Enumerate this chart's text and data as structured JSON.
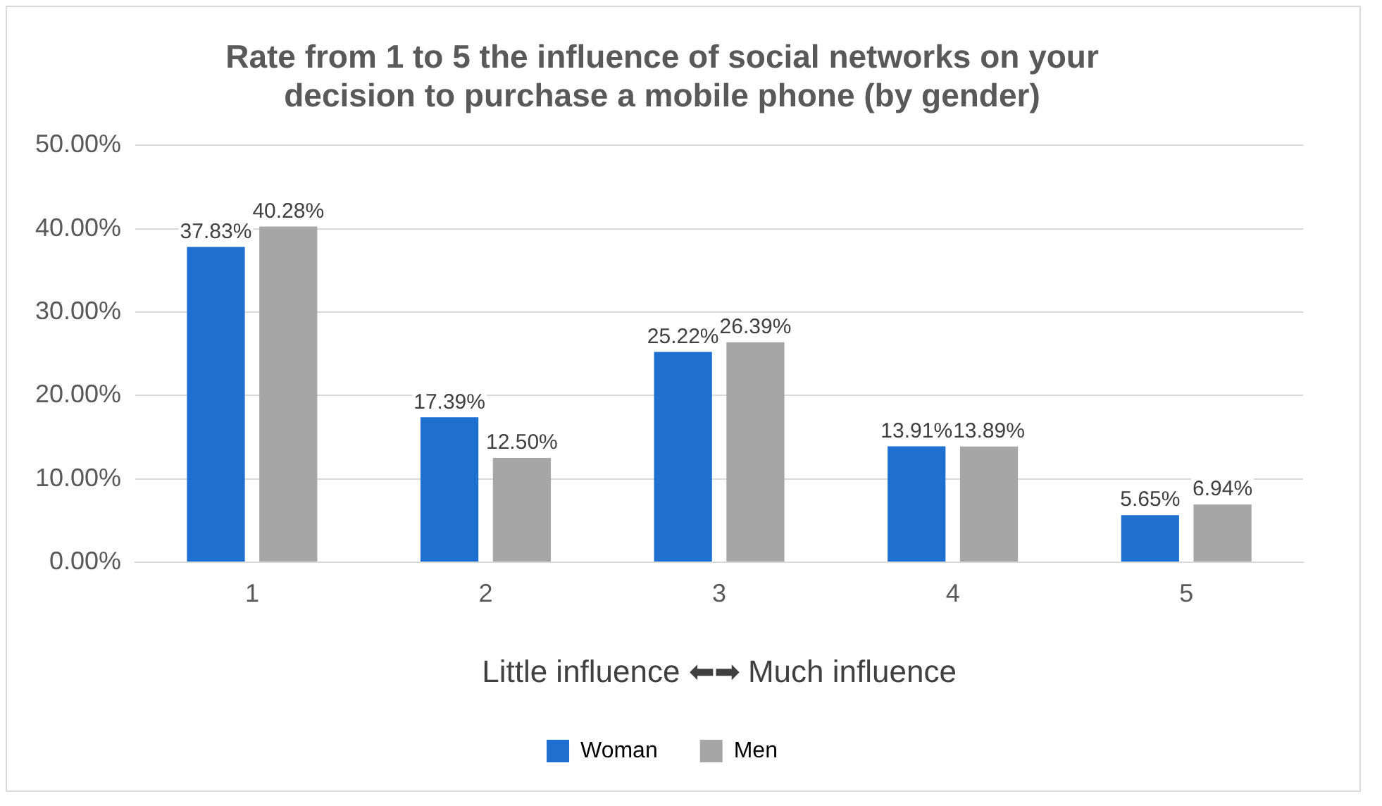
{
  "chart_data": {
    "type": "bar",
    "title": "Rate from 1 to 5 the influence of social networks on your decision to purchase a mobile phone (by gender)",
    "xlabel": "Little influence ⬅➡ Much influence",
    "categories": [
      "1",
      "2",
      "3",
      "4",
      "5"
    ],
    "series": [
      {
        "name": "Woman",
        "color": "#1f6fd0",
        "values": [
          37.83,
          17.39,
          25.22,
          13.91,
          5.65
        ],
        "value_labels": [
          "37.83%",
          "17.39%",
          "25.22%",
          "13.91%",
          "5.65%"
        ]
      },
      {
        "name": "Men",
        "color": "#a6a6a6",
        "values": [
          40.28,
          12.5,
          26.39,
          13.89,
          6.94
        ],
        "value_labels": [
          "40.28%",
          "12.50%",
          "26.39%",
          "13.89%",
          "6.94%"
        ]
      }
    ],
    "ylim": [
      0,
      50
    ],
    "yticks": [
      {
        "value": 0,
        "label": "0.00%"
      },
      {
        "value": 10,
        "label": "10.00%"
      },
      {
        "value": 20,
        "label": "20.00%"
      },
      {
        "value": 30,
        "label": "30.00%"
      },
      {
        "value": 40,
        "label": "40.00%"
      },
      {
        "value": 50,
        "label": "50.00%"
      }
    ],
    "grid": "y",
    "legend": "bottom"
  }
}
